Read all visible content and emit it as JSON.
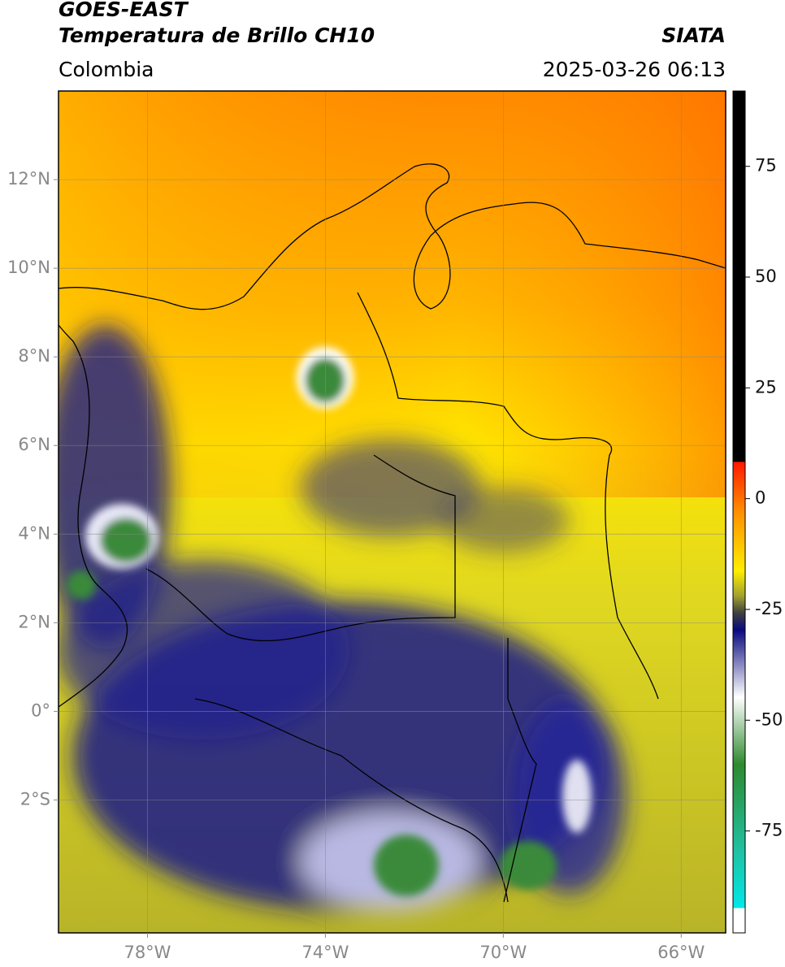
{
  "map": {
    "title_line1": "GOES-EAST",
    "title_line2": "Temperatura de Brillo CH10",
    "source": "SIATA",
    "region": "Colombia",
    "timestamp": "2025-03-26 06:13",
    "xlim": [
      -80,
      -65
    ],
    "ylim": [
      -5,
      14
    ],
    "xticks": [
      {
        "value": -78,
        "label": "78°W"
      },
      {
        "value": -74,
        "label": "74°W"
      },
      {
        "value": -70,
        "label": "70°W"
      },
      {
        "value": -66,
        "label": "66°W"
      }
    ],
    "yticks": [
      {
        "value": 12,
        "label": "12°N"
      },
      {
        "value": 10,
        "label": "10°N"
      },
      {
        "value": 8,
        "label": "8°N"
      },
      {
        "value": 6,
        "label": "6°N"
      },
      {
        "value": 4,
        "label": "4°N"
      },
      {
        "value": 2,
        "label": "2°N"
      },
      {
        "value": 0,
        "label": "0°"
      },
      {
        "value": -2,
        "label": "2°S"
      }
    ],
    "colorbar": {
      "clim": [
        -98,
        92
      ],
      "ticks": [
        75,
        50,
        25,
        0,
        -25,
        -50,
        -75
      ]
    }
  }
}
